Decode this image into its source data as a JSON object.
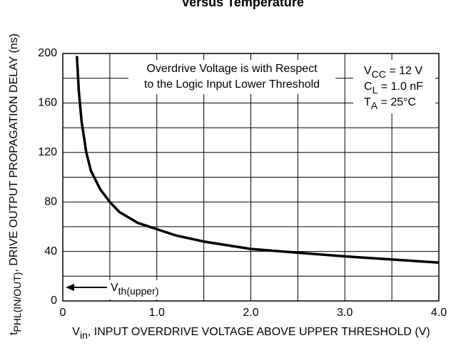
{
  "chart_data": {
    "type": "line",
    "title": "Versus Temperature",
    "ylabel": {
      "main": "t",
      "sub": "PHL(IN/OUT)",
      "rest": ", DRIVE OUTPUT PROPAGATION DELAY (ns)"
    },
    "xlabel": {
      "main": "V",
      "sub": "in",
      "rest": ", INPUT OVERDRIVE VOLTAGE ABOVE UPPER THRESHOLD (V)"
    },
    "annotations": {
      "note": [
        "Overdrive Voltage is with Respect",
        "to the Logic Input Lower Threshold"
      ],
      "conditions": [
        {
          "main": "V",
          "sub": "CC",
          "rest": " = 12 V"
        },
        {
          "main": "C",
          "sub": "L",
          "rest": " = 1.0 nF"
        },
        {
          "main": "T",
          "sub": "A",
          "rest": " = 25°C"
        }
      ],
      "arrow": {
        "main": "V",
        "sub": "th(upper)"
      }
    },
    "series": [
      {
        "color": "#000000",
        "x": [
          0.15,
          0.17,
          0.2,
          0.25,
          0.3,
          0.4,
          0.5,
          0.6,
          0.8,
          1.0,
          1.2,
          1.5,
          2.0,
          2.5,
          3.0,
          3.5,
          4.0
        ],
        "values": [
          198,
          170,
          145,
          120,
          105,
          90,
          80,
          72,
          63,
          58,
          53,
          48,
          42,
          39,
          36,
          33.5,
          31
        ]
      }
    ],
    "xlim": [
      0,
      4
    ],
    "xticks": [
      0,
      {
        "value": 1,
        "label": "1.0"
      },
      {
        "value": 2,
        "label": "2.0"
      },
      {
        "value": 3,
        "label": "3.0"
      },
      {
        "value": 4,
        "label": "4.0"
      }
    ],
    "xminor": [
      0.5,
      1.5,
      2.5,
      3.5
    ],
    "ylim": [
      0,
      200
    ],
    "yticks": [
      0,
      40,
      80,
      120,
      160,
      200
    ],
    "yminor": [
      20,
      60,
      100,
      140,
      180
    ],
    "grid": true
  }
}
